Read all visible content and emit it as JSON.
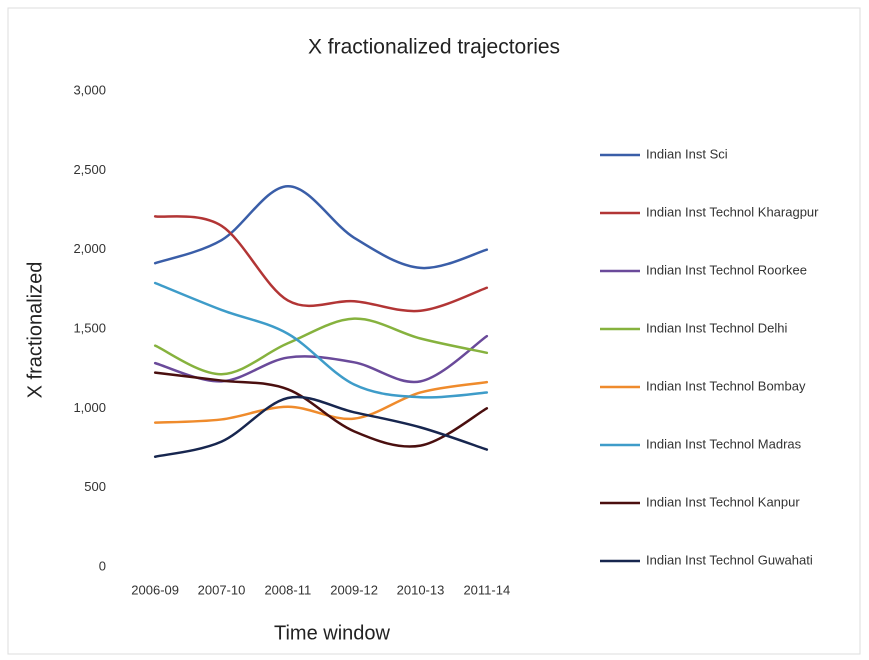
{
  "chart_data": {
    "type": "line",
    "title": "X fractionalized trajectories",
    "x_label": "Time window",
    "y_label": "X fractionalized",
    "categories": [
      "2006-09",
      "2007-10",
      "2008-11",
      "2009-12",
      "2010-13",
      "2011-14"
    ],
    "ylim": [
      0,
      3000
    ],
    "yticks": [
      0,
      500,
      {
        "value": 1000,
        "label": "1,000"
      },
      {
        "value": 1500,
        "label": "1,500"
      },
      {
        "value": 2000,
        "label": "2,000"
      },
      {
        "value": 2500,
        "label": "2,500"
      },
      {
        "value": 3000,
        "label": "3,000"
      }
    ],
    "grid": false,
    "smooth": true,
    "legend": "right",
    "series": [
      {
        "name": "Indian Inst Sci",
        "color": "#3a5ea8",
        "values": [
          1915,
          2060,
          2400,
          2075,
          1885,
          2000
        ]
      },
      {
        "name": "Indian Inst Technol Kharagpur",
        "color": "#b23535",
        "values": [
          2210,
          2150,
          1680,
          1675,
          1615,
          1760
        ]
      },
      {
        "name": "Indian Inst Technol Roorkee",
        "color": "#6a4a9a",
        "values": [
          1285,
          1170,
          1320,
          1290,
          1170,
          1455
        ]
      },
      {
        "name": "Indian Inst Technol Delhi",
        "color": "#86b23e",
        "values": [
          1395,
          1215,
          1410,
          1565,
          1440,
          1350
        ]
      },
      {
        "name": "Indian Inst Technol Bombay",
        "color": "#ef8b2c",
        "values": [
          910,
          930,
          1010,
          935,
          1100,
          1165
        ]
      },
      {
        "name": "Indian Inst Technol Madras",
        "color": "#3e9cc9",
        "values": [
          1790,
          1620,
          1470,
          1150,
          1070,
          1100
        ]
      },
      {
        "name": "Indian Inst Technol Kanpur",
        "color": "#4a0f0f",
        "values": [
          1225,
          1175,
          1120,
          855,
          765,
          1000
        ]
      },
      {
        "name": "Indian Inst Technol Guwahati",
        "color": "#17264f",
        "values": [
          695,
          790,
          1065,
          975,
          880,
          740
        ]
      }
    ]
  }
}
